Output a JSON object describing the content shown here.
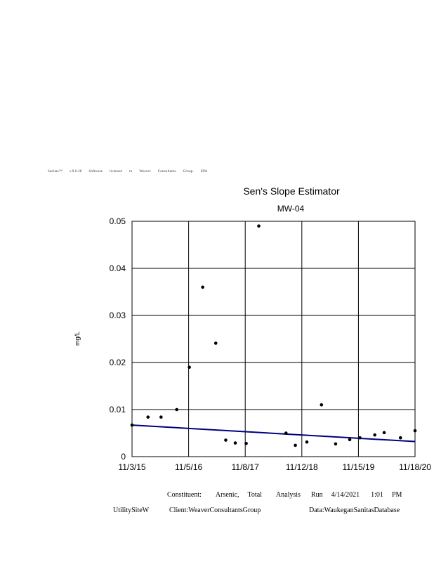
{
  "software_notice": [
    "Sanitas™",
    "v.9.6.28",
    "Software",
    "licensed",
    "to",
    "Weaver",
    "Consultants",
    "Group.",
    "EPA"
  ],
  "chart_data": {
    "type": "scatter",
    "title": "Sen's Slope Estimator",
    "subtitle": "MW-04",
    "xlabel": "",
    "ylabel": "mg/L",
    "x_tick_labels": [
      "11/3/15",
      "11/5/16",
      "11/8/17",
      "11/12/18",
      "11/15/19",
      "11/18/20"
    ],
    "x_range": [
      "2015-11-03",
      "2020-11-18"
    ],
    "y_tick_labels": [
      "0",
      "0.01",
      "0.02",
      "0.03",
      "0.04",
      "0.05"
    ],
    "ylim": [
      0,
      0.05
    ],
    "grid": true,
    "series": [
      {
        "points": [
          {
            "x": "2015-11-03",
            "y": 0.0067
          },
          {
            "x": "2016-02-15",
            "y": 0.0084
          },
          {
            "x": "2016-05-10",
            "y": 0.0084
          },
          {
            "x": "2016-08-20",
            "y": 0.01
          },
          {
            "x": "2016-11-10",
            "y": 0.019
          },
          {
            "x": "2017-02-05",
            "y": 0.036
          },
          {
            "x": "2017-05-01",
            "y": 0.0241
          },
          {
            "x": "2017-07-05",
            "y": 0.0035
          },
          {
            "x": "2017-09-05",
            "y": 0.0029
          },
          {
            "x": "2017-11-15",
            "y": 0.0028
          },
          {
            "x": "2018-02-05",
            "y": 0.049
          },
          {
            "x": "2018-08-01",
            "y": 0.005
          },
          {
            "x": "2018-10-01",
            "y": 0.0024
          },
          {
            "x": "2018-12-15",
            "y": 0.0031
          },
          {
            "x": "2019-03-20",
            "y": 0.011
          },
          {
            "x": "2019-06-20",
            "y": 0.0027
          },
          {
            "x": "2019-09-20",
            "y": 0.0036
          },
          {
            "x": "2019-11-25",
            "y": 0.004
          },
          {
            "x": "2020-03-01",
            "y": 0.0046
          },
          {
            "x": "2020-05-01",
            "y": 0.0051
          },
          {
            "x": "2020-08-15",
            "y": 0.004
          },
          {
            "x": "2020-11-18",
            "y": 0.0055
          }
        ],
        "color": "#000000"
      }
    ],
    "trend_line": {
      "x": [
        "2015-11-03",
        "2020-11-18"
      ],
      "y": [
        0.0067,
        0.0032
      ],
      "color": "#00007f"
    }
  },
  "footer": {
    "line1": [
      "Constituent:",
      "Arsenic,",
      "Total",
      "Analysis",
      "Run",
      "4/14/2021",
      "1:01",
      "PM"
    ],
    "line2": [
      "UtilitySiteW",
      "Client:WeaverConsultantsGroup",
      "Data:WaukeganSanitasDatabase"
    ]
  }
}
